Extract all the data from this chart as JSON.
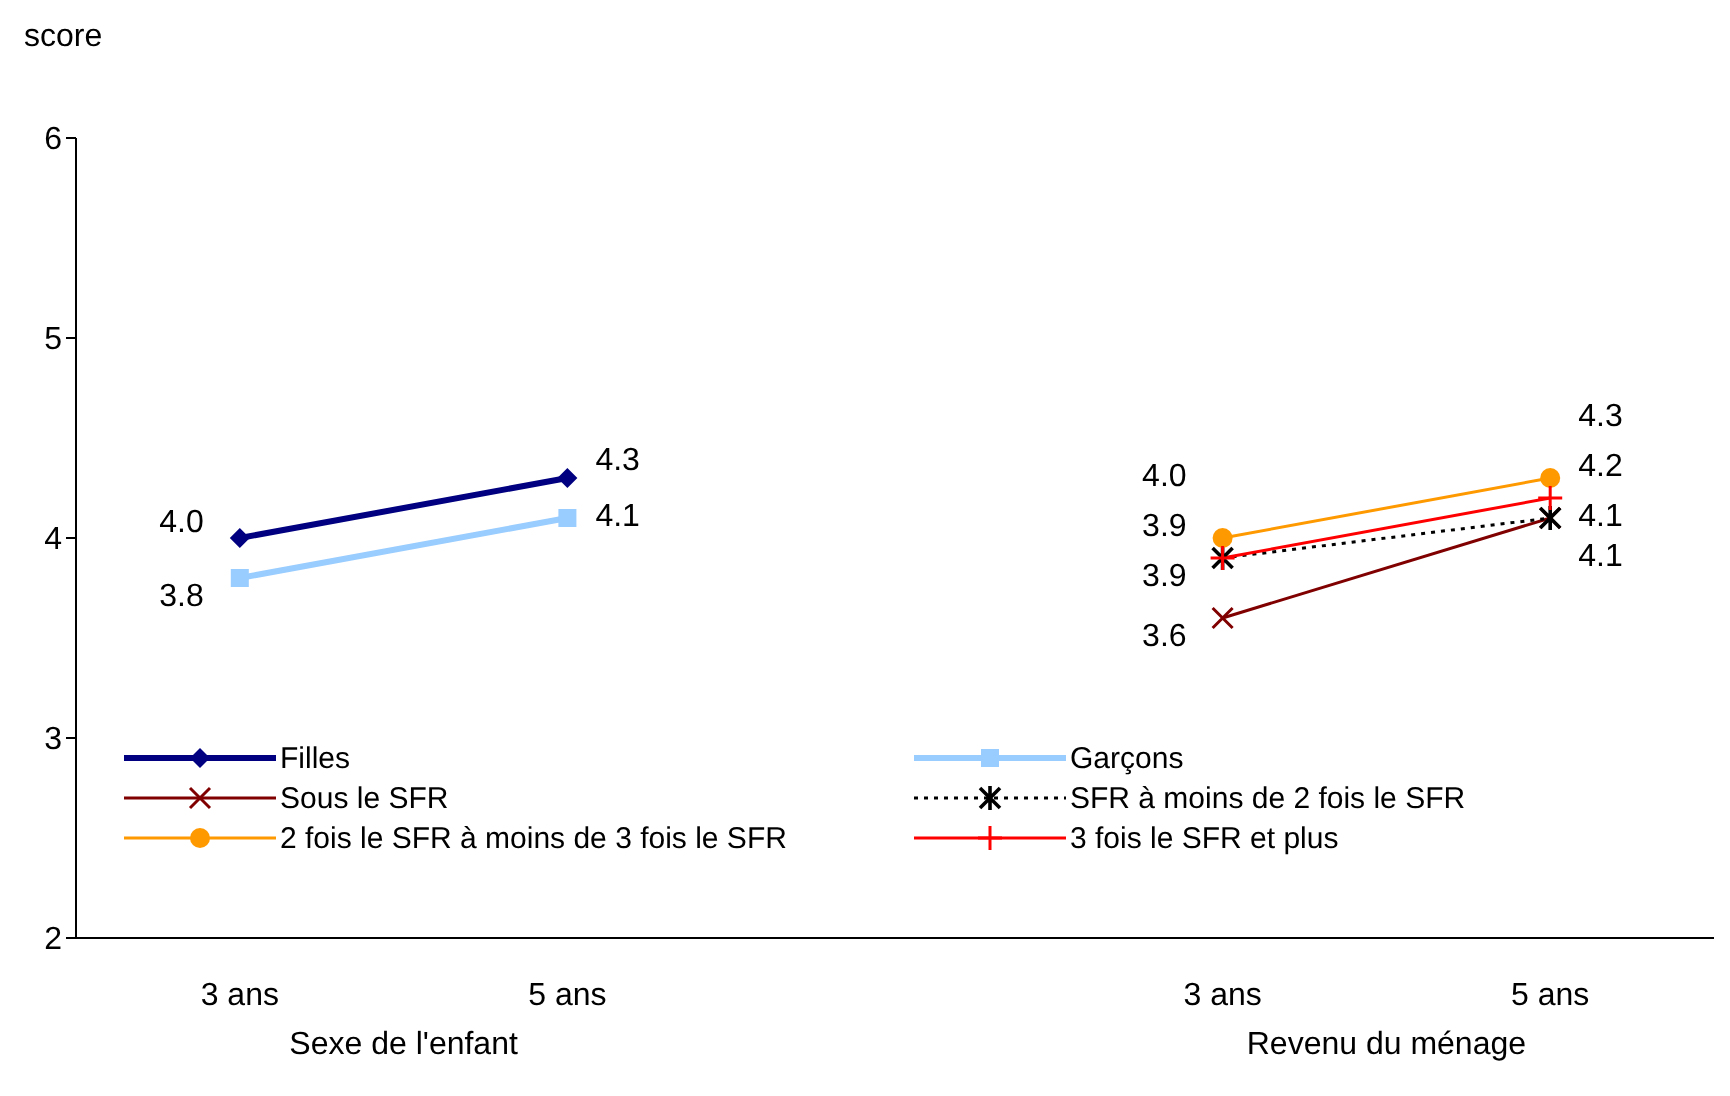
{
  "chart_data": {
    "type": "line",
    "ylabel": "score",
    "categories": [
      "3 ans",
      "5 ans",
      null,
      "3 ans",
      "5 ans"
    ],
    "ylim": [
      2,
      6
    ],
    "yticks": [
      2,
      3,
      4,
      5,
      6
    ],
    "grid": false,
    "legend": "bottom",
    "annotations": [
      "Sexe de l'enfant",
      "Revenu du ménage"
    ],
    "series": [
      {
        "name": "Filles",
        "color": "#000080",
        "marker": "diamond",
        "line_style": "solid",
        "values": [
          4.0,
          4.3,
          null,
          null,
          null
        ],
        "value_labels": [
          "4.0",
          "4.3",
          null,
          null,
          null
        ]
      },
      {
        "name": "Garçons",
        "color": "#99ccff",
        "marker": "square",
        "line_style": "solid",
        "values": [
          3.8,
          4.1,
          null,
          null,
          null
        ],
        "value_labels": [
          "3.8",
          "4.1",
          null,
          null,
          null
        ]
      },
      {
        "name": "Sous le SFR",
        "color": "#800000",
        "marker": "x",
        "line_style": "solid",
        "values": [
          null,
          null,
          null,
          3.6,
          4.1
        ],
        "value_labels": [
          null,
          null,
          null,
          "3.6",
          "4.1"
        ]
      },
      {
        "name": "SFR à moins de 2 fois le SFR",
        "color": "#000000",
        "marker": "cross",
        "line_style": "dotted",
        "values": [
          null,
          null,
          null,
          3.9,
          4.1
        ],
        "value_labels": [
          null,
          null,
          null,
          "3.9",
          "4.1"
        ]
      },
      {
        "name": "2 fois le SFR à moins de 3 fois le SFR",
        "color": "#ff9900",
        "marker": "circle",
        "line_style": "solid",
        "values": [
          null,
          null,
          null,
          4.0,
          4.3
        ],
        "value_labels": [
          null,
          null,
          null,
          "4.0",
          "4.3"
        ]
      },
      {
        "name": "3 fois le SFR et plus",
        "color": "#ff0000",
        "marker": "plus",
        "line_style": "solid",
        "values": [
          null,
          null,
          null,
          3.9,
          4.2
        ],
        "value_labels": [
          null,
          null,
          null,
          "3.9",
          "4.2"
        ]
      }
    ]
  }
}
